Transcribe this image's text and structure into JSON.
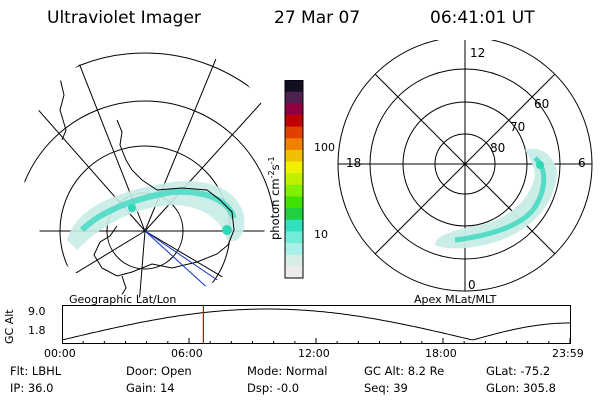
{
  "header": {
    "title": "Ultraviolet Imager",
    "date": "27 Mar 07",
    "time": "06:41:01 UT"
  },
  "left_panel": {
    "label": "Geographic Lat/Lon"
  },
  "right_panel": {
    "label": "Apex MLat/MLT",
    "mlt_labels": {
      "top": "12",
      "left": "18",
      "right": "6",
      "bottom": "0"
    },
    "lat_labels": [
      "60",
      "70",
      "80"
    ]
  },
  "colorbar": {
    "unit_label": "photon cm",
    "unit_sup1": "-2",
    "unit_mid": "s",
    "unit_sup2": "-1",
    "ticks": [
      "100",
      "10"
    ],
    "colors": [
      "#101020",
      "#502050",
      "#900040",
      "#c00000",
      "#e04000",
      "#f08000",
      "#f0c000",
      "#f0f000",
      "#c0f000",
      "#80f000",
      "#40e000",
      "#20d040",
      "#30e0c0",
      "#70ecd8",
      "#a8f0e8",
      "#d8ece8",
      "#ececec"
    ]
  },
  "altitude_plot": {
    "ylabel": "GC Alt",
    "yticks": [
      "9.0",
      "1.8"
    ],
    "xticks": [
      "00:00",
      "06:00",
      "12:00",
      "18:00",
      "23:59"
    ],
    "current_time_hours": 6.68,
    "marker_color": "#dd0000"
  },
  "info": {
    "flt": "Flt: LBHL",
    "ip": "IP: 36.0",
    "door": "Door: Open",
    "gain": "Gain: 14",
    "mode": "Mode: Normal",
    "dsp": "Dsp:    -0.0",
    "gcalt": "GC Alt: 8.2 Re",
    "seq": "Seq: 39",
    "glat": "GLat: -75.2",
    "glon": "GLon: 305.8"
  }
}
